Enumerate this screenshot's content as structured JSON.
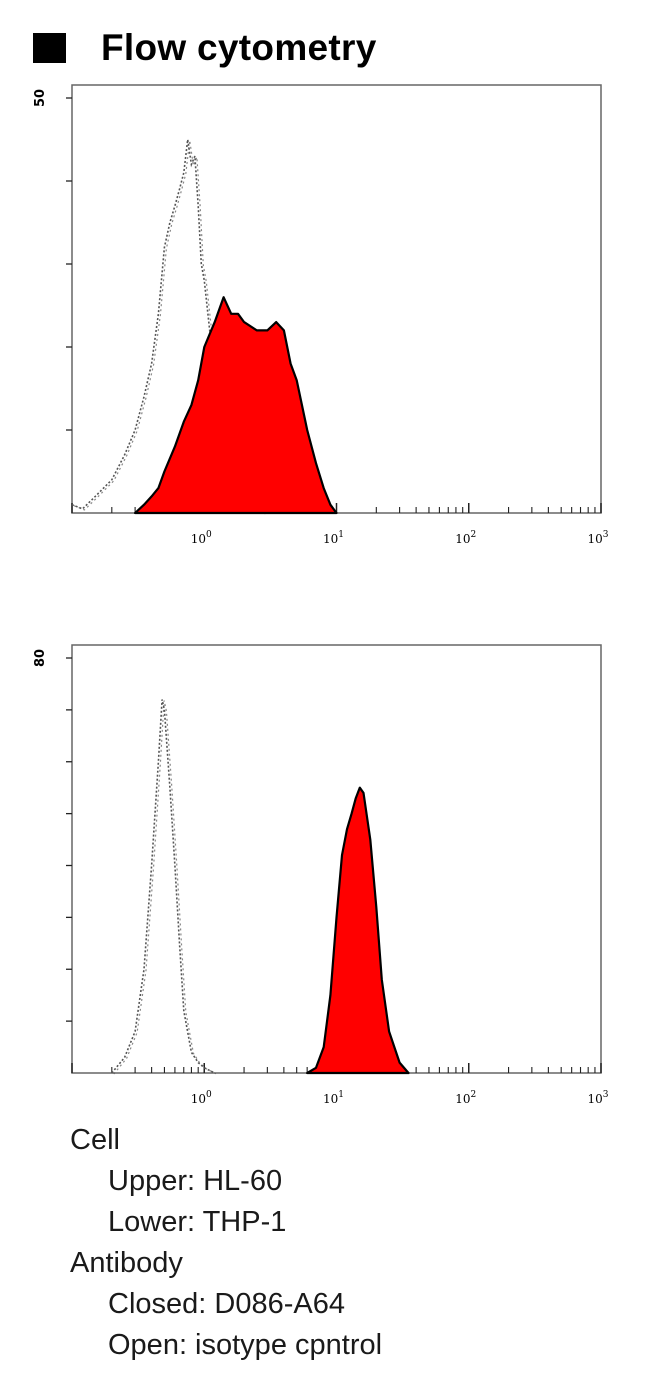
{
  "header": {
    "title": "Flow cytometry"
  },
  "chart_data": [
    {
      "type": "area",
      "x_scale": "log",
      "xlim": [
        0.1,
        1000
      ],
      "ylim": [
        0,
        50
      ],
      "x_ticks": [
        {
          "base": "10",
          "exp": "0"
        },
        {
          "base": "10",
          "exp": "1"
        },
        {
          "base": "10",
          "exp": "2"
        },
        {
          "base": "10",
          "exp": "3"
        }
      ],
      "y_max_label": "50",
      "y_tick_count": 5,
      "series": [
        {
          "style": "open-dotted",
          "color": "#555555",
          "x": [
            0.1,
            0.12,
            0.15,
            0.2,
            0.25,
            0.3,
            0.35,
            0.4,
            0.45,
            0.5,
            0.55,
            0.6,
            0.65,
            0.7,
            0.75,
            0.8,
            0.85,
            0.9,
            0.95,
            1.0,
            1.1,
            1.25,
            1.4,
            1.6,
            1.8,
            2.0,
            2.2,
            2.5,
            2.8
          ],
          "y": [
            1,
            0.5,
            2,
            4,
            7,
            10,
            14,
            18,
            24,
            32,
            35,
            37,
            39,
            41,
            45,
            42,
            43,
            37,
            30,
            28,
            22,
            15,
            12,
            9,
            6,
            4,
            2,
            1,
            0
          ]
        },
        {
          "style": "filled",
          "color": "#ff0000",
          "x": [
            0.3,
            0.35,
            0.4,
            0.45,
            0.5,
            0.6,
            0.7,
            0.8,
            0.9,
            1.0,
            1.2,
            1.4,
            1.6,
            1.8,
            2.0,
            2.5,
            3.0,
            3.5,
            4.0,
            4.5,
            5.0,
            6.0,
            7.0,
            8.0,
            9.0,
            10.0
          ],
          "y": [
            0,
            1,
            2,
            3,
            5,
            8,
            11,
            13,
            16,
            20,
            23,
            26,
            24,
            24,
            23,
            22,
            22,
            23,
            22,
            18,
            16,
            10,
            6,
            3,
            1,
            0
          ]
        }
      ]
    },
    {
      "type": "area",
      "x_scale": "log",
      "xlim": [
        0.1,
        1000
      ],
      "ylim": [
        0,
        80
      ],
      "x_ticks": [
        {
          "base": "10",
          "exp": "0"
        },
        {
          "base": "10",
          "exp": "1"
        },
        {
          "base": "10",
          "exp": "2"
        },
        {
          "base": "10",
          "exp": "3"
        }
      ],
      "y_max_label": "80",
      "y_tick_count": 8,
      "series": [
        {
          "style": "open-dotted",
          "color": "#555555",
          "x": [
            0.2,
            0.25,
            0.3,
            0.35,
            0.4,
            0.45,
            0.48,
            0.5,
            0.55,
            0.6,
            0.65,
            0.7,
            0.8,
            0.9,
            1.0,
            1.2
          ],
          "y": [
            0,
            3,
            8,
            20,
            40,
            60,
            72,
            70,
            55,
            40,
            25,
            12,
            4,
            2,
            1,
            0
          ]
        },
        {
          "style": "filled",
          "color": "#ff0000",
          "x": [
            6.0,
            7.0,
            8.0,
            9.0,
            10.0,
            11.0,
            12.0,
            13.0,
            14.0,
            15.0,
            16.0,
            18.0,
            20.0,
            22.0,
            25.0,
            30.0,
            35.0
          ],
          "y": [
            0,
            1,
            5,
            15,
            30,
            42,
            47,
            50,
            53,
            55,
            54,
            45,
            32,
            18,
            8,
            2,
            0
          ]
        }
      ]
    }
  ],
  "legend": {
    "cell_label": "Cell",
    "upper": "Upper: HL-60",
    "lower": "Lower: THP-1",
    "antibody_label": "Antibody",
    "closed": "Closed: D086-A64",
    "open": "Open: isotype cpntrol"
  }
}
